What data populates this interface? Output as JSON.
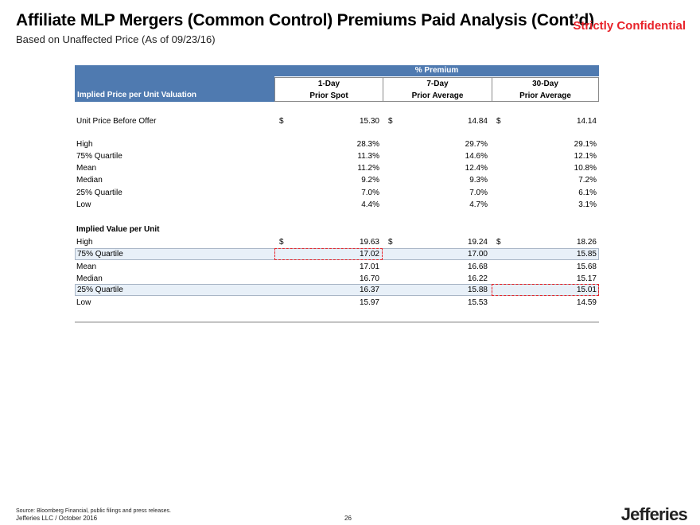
{
  "header": {
    "title": "Affiliate MLP Mergers (Common Control) Premiums Paid Analysis (Cont’d)",
    "subtitle": "Based on Unaffected Price (As of 09/23/16)",
    "confidential": "Strictly Confidential"
  },
  "table": {
    "row_header": "Implied Price per Unit Valuation",
    "group_header": "% Premium",
    "columns": [
      {
        "line1": "1-Day",
        "line2": "Prior Spot"
      },
      {
        "line1": "7-Day",
        "line2": "Prior Average"
      },
      {
        "line1": "30-Day",
        "line2": "Prior Average"
      }
    ],
    "unit_price": {
      "label": "Unit Price Before Offer",
      "currency": "$",
      "values": [
        "15.30",
        "14.84",
        "14.14"
      ]
    },
    "premium_rows": [
      {
        "label": "High",
        "values": [
          "28.3%",
          "29.7%",
          "29.1%"
        ]
      },
      {
        "label": "75% Quartile",
        "values": [
          "11.3%",
          "14.6%",
          "12.1%"
        ]
      },
      {
        "label": "Mean",
        "values": [
          "11.2%",
          "12.4%",
          "10.8%"
        ]
      },
      {
        "label": "Median",
        "values": [
          "9.2%",
          "9.3%",
          "7.2%"
        ]
      },
      {
        "label": "25% Quartile",
        "values": [
          "7.0%",
          "7.0%",
          "6.1%"
        ]
      },
      {
        "label": "Low",
        "values": [
          "4.4%",
          "4.7%",
          "3.1%"
        ]
      }
    ],
    "implied_title": "Implied Value per Unit",
    "implied_rows": [
      {
        "label": "High",
        "currency": "$",
        "values": [
          "19.63",
          "19.24",
          "18.26"
        ]
      },
      {
        "label": "75% Quartile",
        "values": [
          "17.02",
          "17.00",
          "15.85"
        ]
      },
      {
        "label": "Mean",
        "values": [
          "17.01",
          "16.68",
          "15.68"
        ]
      },
      {
        "label": "Median",
        "values": [
          "16.70",
          "16.22",
          "15.17"
        ]
      },
      {
        "label": "25% Quartile",
        "values": [
          "16.37",
          "15.88",
          "15.01"
        ]
      },
      {
        "label": "Low",
        "values": [
          "15.97",
          "15.53",
          "14.59"
        ]
      }
    ]
  },
  "footer": {
    "source": "Source: Bloomberg Financial, public filings and press releases.",
    "company": "Jefferies LLC  /  October 2016",
    "page": "26",
    "logo": "Jefferies"
  },
  "colors": {
    "accent": "#e8232a",
    "header_blue": "#4f7ab0",
    "highlight": "#e8f0f8"
  }
}
